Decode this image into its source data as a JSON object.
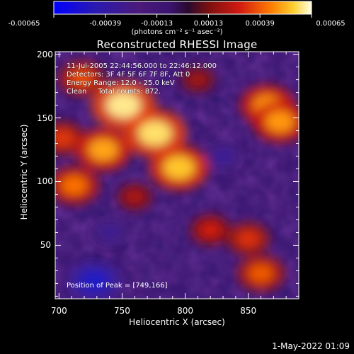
{
  "colorbar": {
    "tick_labels": [
      "-0.00065",
      "-0.00039",
      "-0.00013",
      "0.00013",
      "0.00039",
      "0.00065"
    ],
    "units_label": "(photons cm⁻² s⁻¹ asec⁻²)",
    "range": [
      -0.00065,
      0.00065
    ]
  },
  "annotations": {
    "time_range": "11-Jul-2005 22:44:56.000 to 22:46:12.000",
    "detectors": "Detectors: 3F 4F 5F 6F 7F 8F, Att 0",
    "energy_range": "Energy Range: 12.0 - 25.0 keV",
    "algorithm": "Clean     Total counts: 872.",
    "peak": "Position of Peak = [749,166]"
  },
  "footer": {
    "date": "1-May-2022 01:09"
  },
  "colors": {
    "background": "#000000",
    "field": "#3a1470",
    "warm_high": "#ffffc8",
    "cold_low": "#0000ff"
  },
  "chart_data": {
    "type": "heatmap",
    "title": "Reconstructed RHESSI Image",
    "xlabel": "Heliocentric X (arcsec)",
    "ylabel": "Heliocentric Y (arcsec)",
    "xlim": [
      697,
      890
    ],
    "ylim": [
      8,
      202
    ],
    "x_ticks": [
      "700",
      "750",
      "800",
      "850"
    ],
    "y_ticks": [
      "50",
      "100",
      "150",
      "200"
    ],
    "colormap": "rainbow-blue-to-white",
    "grid": false,
    "sources": [
      {
        "x": 776,
        "y": 138,
        "value": 0.00058
      },
      {
        "x": 795,
        "y": 111,
        "value": 0.00053
      },
      {
        "x": 751,
        "y": 160,
        "value": 0.0006
      },
      {
        "x": 735,
        "y": 125,
        "value": 0.00048
      },
      {
        "x": 712,
        "y": 97,
        "value": 0.0004
      },
      {
        "x": 718,
        "y": 181,
        "value": 0.00034
      },
      {
        "x": 703,
        "y": 134,
        "value": 0.00031
      },
      {
        "x": 865,
        "y": 160,
        "value": 0.00045
      },
      {
        "x": 875,
        "y": 147,
        "value": 0.00046
      },
      {
        "x": 860,
        "y": 28,
        "value": 0.00036
      },
      {
        "x": 850,
        "y": 55,
        "value": 0.0003
      },
      {
        "x": 820,
        "y": 62,
        "value": 0.00026
      },
      {
        "x": 810,
        "y": 180,
        "value": 0.00018
      },
      {
        "x": 760,
        "y": 88,
        "value": 0.0002
      },
      {
        "x": 728,
        "y": 22,
        "value": -0.00042
      },
      {
        "x": 740,
        "y": 60,
        "value": -0.0002
      },
      {
        "x": 830,
        "y": 120,
        "value": -0.00022
      }
    ]
  }
}
